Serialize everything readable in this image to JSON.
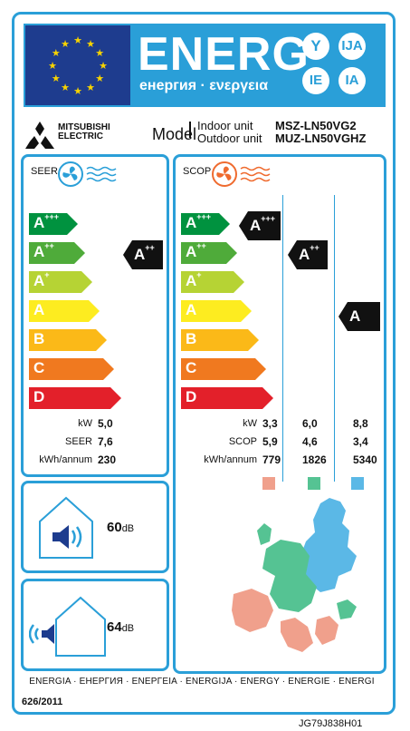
{
  "header": {
    "title": "ENERG",
    "subtitle": "енергия · ενεργεια",
    "lang_suffixes": [
      "Y",
      "IJA",
      "IE",
      "IA"
    ],
    "eu_flag_icon": "eu-stars-flag"
  },
  "manufacturer": {
    "brand_line1": "MITSUBISHI",
    "brand_line2": "ELECTRIC",
    "logo_icon": "three-diamonds-logo"
  },
  "model": {
    "label": "Model",
    "indoor_label": "Indoor unit",
    "outdoor_label": "Outdoor unit",
    "indoor_value": "MSZ-LN50VG2",
    "outdoor_value": "MUZ-LN50VGHZ"
  },
  "seer": {
    "title": "SEER",
    "scale": [
      {
        "letter": "A",
        "plus": "+++",
        "color": "#00923f"
      },
      {
        "letter": "A",
        "plus": "++",
        "color": "#4fab3a"
      },
      {
        "letter": "A",
        "plus": "+",
        "color": "#b6d334"
      },
      {
        "letter": "A",
        "plus": "",
        "color": "#fdec20"
      },
      {
        "letter": "B",
        "plus": "",
        "color": "#fbb918"
      },
      {
        "letter": "C",
        "plus": "",
        "color": "#f0791f"
      },
      {
        "letter": "D",
        "plus": "",
        "color": "#e3202a"
      }
    ],
    "rating": {
      "letter": "A",
      "plus": "++"
    },
    "rows": [
      {
        "label": "kW",
        "value": "5,0"
      },
      {
        "label": "SEER",
        "value": "7,6"
      },
      {
        "label": "kWh/annum",
        "value": "230"
      }
    ]
  },
  "scop": {
    "title": "SCOP",
    "ratings": [
      {
        "letter": "A",
        "plus": "+++"
      },
      {
        "letter": "A",
        "plus": "++"
      },
      {
        "letter": "A",
        "plus": ""
      }
    ],
    "row_labels": [
      "kW",
      "SCOP",
      "kWh/annum"
    ],
    "columns": [
      {
        "values": [
          "3,3",
          "5,9",
          "779"
        ],
        "color": "#f0a08c"
      },
      {
        "values": [
          "6,0",
          "4,6",
          "1826"
        ],
        "color": "#55c393"
      },
      {
        "values": [
          "8,8",
          "3,4",
          "5340"
        ],
        "color": "#5bb8e6"
      }
    ]
  },
  "noise_indoor": {
    "value": "60",
    "unit": "dB",
    "icon": "speaker-in-house-icon"
  },
  "noise_outdoor": {
    "value": "64",
    "unit": "dB",
    "icon": "speaker-outside-house-icon"
  },
  "footer": {
    "languages": "ENERGIA · ЕНЕРГИЯ · ΕΝΕΡΓΕΙΑ · ENERGIJA · ENERGY · ENERGIE · ENERGI",
    "regulation": "626/2011",
    "code": "JG79J838H01"
  }
}
